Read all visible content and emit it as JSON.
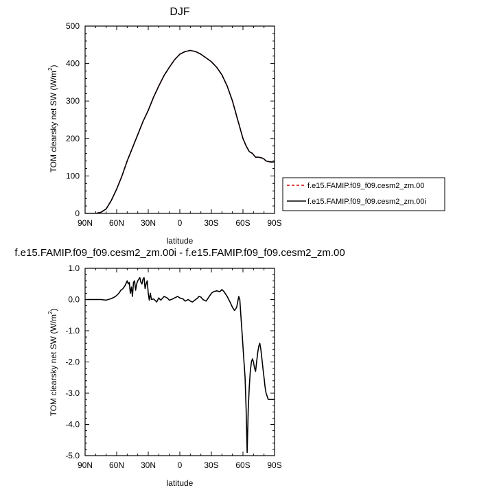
{
  "chart_data": [
    {
      "type": "line",
      "title": "DJF",
      "xlabel": "latitude",
      "ylabel": "TOM clearsky net SW (W/m²)",
      "ylabel_main": "TOM clearsky net SW (W/m",
      "ylabel_sup": "2",
      "ylabel_end": ")",
      "xlim": [
        90,
        -90
      ],
      "ylim": [
        0,
        500
      ],
      "xticks": [
        {
          "value": 90,
          "label": "90N"
        },
        {
          "value": 60,
          "label": "60N"
        },
        {
          "value": 30,
          "label": "30N"
        },
        {
          "value": 0,
          "label": "0"
        },
        {
          "value": -30,
          "label": "30S"
        },
        {
          "value": -60,
          "label": "60S"
        },
        {
          "value": -90,
          "label": "90S"
        }
      ],
      "yticks": [
        {
          "value": 0,
          "label": "0"
        },
        {
          "value": 100,
          "label": "100"
        },
        {
          "value": 200,
          "label": "200"
        },
        {
          "value": 300,
          "label": "300"
        },
        {
          "value": 400,
          "label": "400"
        },
        {
          "value": 500,
          "label": "500"
        }
      ],
      "grid": false,
      "legend_position": "right",
      "series": [
        {
          "name": "f.e15.FAMIP.f09_f09.cesm2_zm.00",
          "color": "#cc0000",
          "dash": "dashed",
          "x": [
            90,
            80,
            75,
            70,
            65,
            60,
            55,
            50,
            45,
            40,
            35,
            30,
            25,
            20,
            15,
            10,
            5,
            0,
            -5,
            -10,
            -15,
            -20,
            -25,
            -30,
            -35,
            -40,
            -45,
            -50,
            -55,
            -60,
            -63,
            -66,
            -69,
            -72,
            -75,
            -78,
            -80,
            -82,
            -85,
            -88,
            -90
          ],
          "y": [
            0,
            0,
            3,
            12,
            35,
            65,
            100,
            140,
            175,
            210,
            245,
            275,
            310,
            340,
            368,
            390,
            410,
            425,
            432,
            435,
            432,
            425,
            415,
            405,
            390,
            370,
            340,
            300,
            250,
            200,
            180,
            165,
            160,
            150,
            150,
            148,
            145,
            140,
            138,
            137,
            138
          ]
        },
        {
          "name": "f.e15.FAMIP.f09_f09.cesm2_zm.00i",
          "color": "#000000",
          "dash": "solid",
          "x": [
            90,
            80,
            75,
            70,
            65,
            60,
            55,
            50,
            45,
            40,
            35,
            30,
            25,
            20,
            15,
            10,
            5,
            0,
            -5,
            -10,
            -15,
            -20,
            -25,
            -30,
            -35,
            -40,
            -45,
            -50,
            -55,
            -60,
            -63,
            -66,
            -69,
            -72,
            -75,
            -78,
            -80,
            -82,
            -85,
            -88,
            -90
          ],
          "y": [
            0,
            0,
            3,
            12,
            35,
            65,
            100,
            140,
            175,
            210,
            245,
            275,
            310,
            340,
            368,
            390,
            410,
            425,
            432,
            435,
            432,
            425,
            415,
            405,
            390,
            370,
            340,
            300,
            250,
            200,
            180,
            165,
            160,
            150,
            150,
            148,
            145,
            140,
            138,
            137,
            138
          ]
        }
      ]
    },
    {
      "type": "line",
      "title": "f.e15.FAMIP.f09_f09.cesm2_zm.00i - f.e15.FAMIP.f09_f09.cesm2_zm.00",
      "xlabel": "latitude",
      "ylabel": "TOM clearsky net SW (W/m²)",
      "ylabel_main": "TOM clearsky net SW (W/m",
      "ylabel_sup": "2",
      "ylabel_end": ")",
      "xlim": [
        90,
        -90
      ],
      "ylim": [
        -5,
        1
      ],
      "xticks": [
        {
          "value": 90,
          "label": "90N"
        },
        {
          "value": 60,
          "label": "60N"
        },
        {
          "value": 30,
          "label": "30N"
        },
        {
          "value": 0,
          "label": "0"
        },
        {
          "value": -30,
          "label": "30S"
        },
        {
          "value": -60,
          "label": "60S"
        },
        {
          "value": -90,
          "label": "90S"
        }
      ],
      "yticks": [
        {
          "value": 1,
          "label": "1.0"
        },
        {
          "value": 0,
          "label": "0.0"
        },
        {
          "value": -1,
          "label": "-1.0"
        },
        {
          "value": -2,
          "label": "-2.0"
        },
        {
          "value": -3,
          "label": "-3.0"
        },
        {
          "value": -4,
          "label": "-4.0"
        },
        {
          "value": -5,
          "label": "-5.0"
        }
      ],
      "grid": false,
      "series": [
        {
          "color": "#000000",
          "dash": "solid",
          "x": [
            90,
            75,
            70,
            68,
            65,
            62,
            60,
            58,
            56,
            54,
            52,
            50,
            49,
            48,
            47,
            46,
            45,
            44,
            43,
            42,
            41,
            40,
            38,
            37,
            36,
            35,
            34,
            33,
            32,
            31,
            30,
            29,
            28,
            27,
            25,
            22,
            20,
            18,
            15,
            12,
            10,
            8,
            5,
            2,
            0,
            -3,
            -5,
            -8,
            -10,
            -12,
            -15,
            -17,
            -18,
            -20,
            -22,
            -25,
            -28,
            -30,
            -32,
            -35,
            -38,
            -40,
            -42,
            -45,
            -48,
            -50,
            -52,
            -54,
            -56,
            -57,
            -58,
            -59,
            -60,
            -61,
            -62,
            -63,
            -64,
            -65,
            -66,
            -67,
            -68,
            -69,
            -70,
            -71,
            -72,
            -73,
            -74,
            -75,
            -76,
            -77,
            -78,
            -79,
            -80,
            -81,
            -82,
            -83,
            -84,
            -85,
            -86,
            -87,
            -88,
            -89,
            -90
          ],
          "y": [
            0,
            0,
            -0.02,
            0.0,
            0.03,
            0.08,
            0.13,
            0.2,
            0.3,
            0.35,
            0.45,
            0.6,
            0.5,
            0.55,
            0.2,
            0.4,
            0.1,
            0.55,
            0.6,
            0.3,
            0.5,
            0.6,
            0.7,
            0.55,
            0.5,
            0.65,
            0.7,
            0.35,
            0.5,
            0.6,
            0.2,
            -0.02,
            0.2,
            0.0,
            0.02,
            -0.08,
            0.05,
            -0.02,
            0.1,
            0.05,
            -0.02,
            0.0,
            0.05,
            0.1,
            0.05,
            0.02,
            -0.05,
            0.0,
            -0.05,
            -0.08,
            0.0,
            0.05,
            0.1,
            0.08,
            0.0,
            -0.05,
            0.1,
            0.2,
            0.25,
            0.28,
            0.25,
            0.32,
            0.25,
            0.1,
            -0.1,
            -0.25,
            -0.35,
            -0.25,
            0.1,
            0.0,
            -0.5,
            -1.0,
            -1.5,
            -2.0,
            -2.5,
            -3.5,
            -4.9,
            -3.5,
            -2.8,
            -2.3,
            -2.0,
            -1.9,
            -2.0,
            -2.2,
            -2.3,
            -2.0,
            -1.7,
            -1.5,
            -1.4,
            -1.6,
            -1.9,
            -2.2,
            -2.5,
            -2.8,
            -3.0,
            -3.1,
            -3.2,
            -3.2,
            -3.2,
            -3.2,
            -3.2,
            -3.2,
            -3.2
          ]
        }
      ]
    }
  ]
}
